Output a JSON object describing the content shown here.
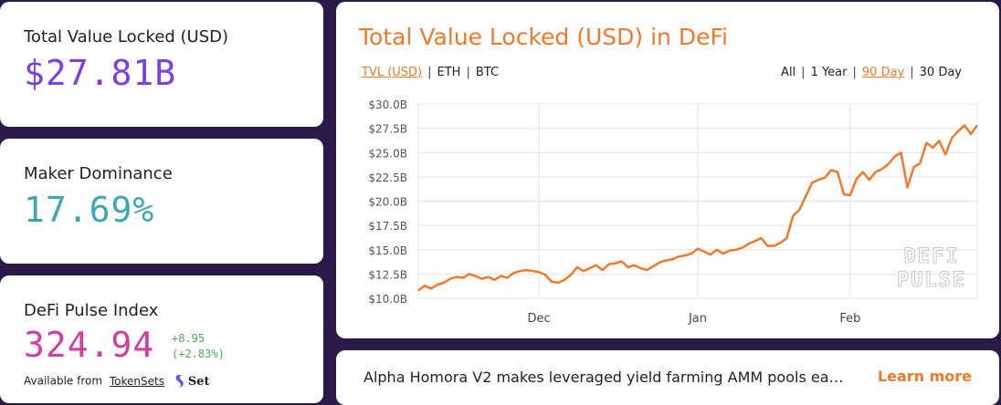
{
  "tvl": {
    "label": "Total Value Locked (USD)",
    "value": "$27.81B"
  },
  "maker": {
    "label": "Maker Dominance",
    "value": "17.69%"
  },
  "index": {
    "label": "DeFi Pulse Index",
    "value": "324.94",
    "change_abs": "+8.95",
    "change_pct": "(+2.83%)",
    "available_from": "Available from",
    "tokensets": "TokenSets",
    "set_logo_text": "Set"
  },
  "chart": {
    "title": "Total Value Locked (USD) in DeFi",
    "currency_tabs": [
      {
        "label": "TVL (USD)",
        "active": true
      },
      {
        "label": "ETH",
        "active": false
      },
      {
        "label": "BTC",
        "active": false
      }
    ],
    "range_tabs": [
      {
        "label": "All",
        "active": false
      },
      {
        "label": "1 Year",
        "active": false
      },
      {
        "label": "90 Day",
        "active": true
      },
      {
        "label": "30 Day",
        "active": false
      }
    ],
    "watermark": [
      "DEFI",
      "PULSE"
    ]
  },
  "chart_data": {
    "type": "line",
    "series": [
      {
        "values": [
          10.8,
          11.3,
          11.0,
          11.4,
          11.6,
          12.0,
          12.2,
          12.1,
          12.5,
          12.3,
          12.0,
          12.2,
          11.9,
          12.3,
          12.1,
          12.6,
          12.8,
          12.9,
          12.8,
          12.7,
          12.4,
          11.7,
          11.6,
          11.9,
          12.4,
          13.2,
          12.8,
          13.1,
          13.4,
          12.9,
          13.5,
          13.6,
          13.8,
          13.2,
          13.4,
          13.1,
          12.9,
          13.3,
          13.7,
          13.9,
          14.0,
          14.3,
          14.4,
          14.6,
          15.1,
          14.8,
          14.5,
          15.0,
          14.6,
          14.9,
          15.0,
          15.2,
          15.6,
          15.9,
          16.2,
          15.4,
          15.4,
          15.7,
          16.2,
          18.5,
          19.1,
          20.5,
          21.9,
          22.2,
          22.4,
          23.2,
          23.0,
          20.7,
          20.6,
          22.3,
          23.0,
          22.2,
          23.0,
          23.3,
          23.8,
          24.6,
          25.0,
          21.4,
          23.5,
          23.9,
          26.0,
          25.5,
          26.2,
          24.8,
          26.5,
          27.2,
          27.8,
          26.9,
          27.81
        ]
      }
    ],
    "x_ticks": [
      "Dec",
      "Jan",
      "Feb"
    ],
    "x_tick_index": [
      19,
      44,
      68
    ],
    "y_ticks": [
      "$10.0B",
      "$12.5B",
      "$15.0B",
      "$17.5B",
      "$20.0B",
      "$22.5B",
      "$25.0B",
      "$27.5B",
      "$30.0B"
    ],
    "ylim": [
      10,
      30
    ],
    "grid": true,
    "color": "#f0792b"
  },
  "news": {
    "text": "Alpha Homora V2 makes leveraged yield farming AMM pools ea…",
    "cta": "Learn more"
  }
}
